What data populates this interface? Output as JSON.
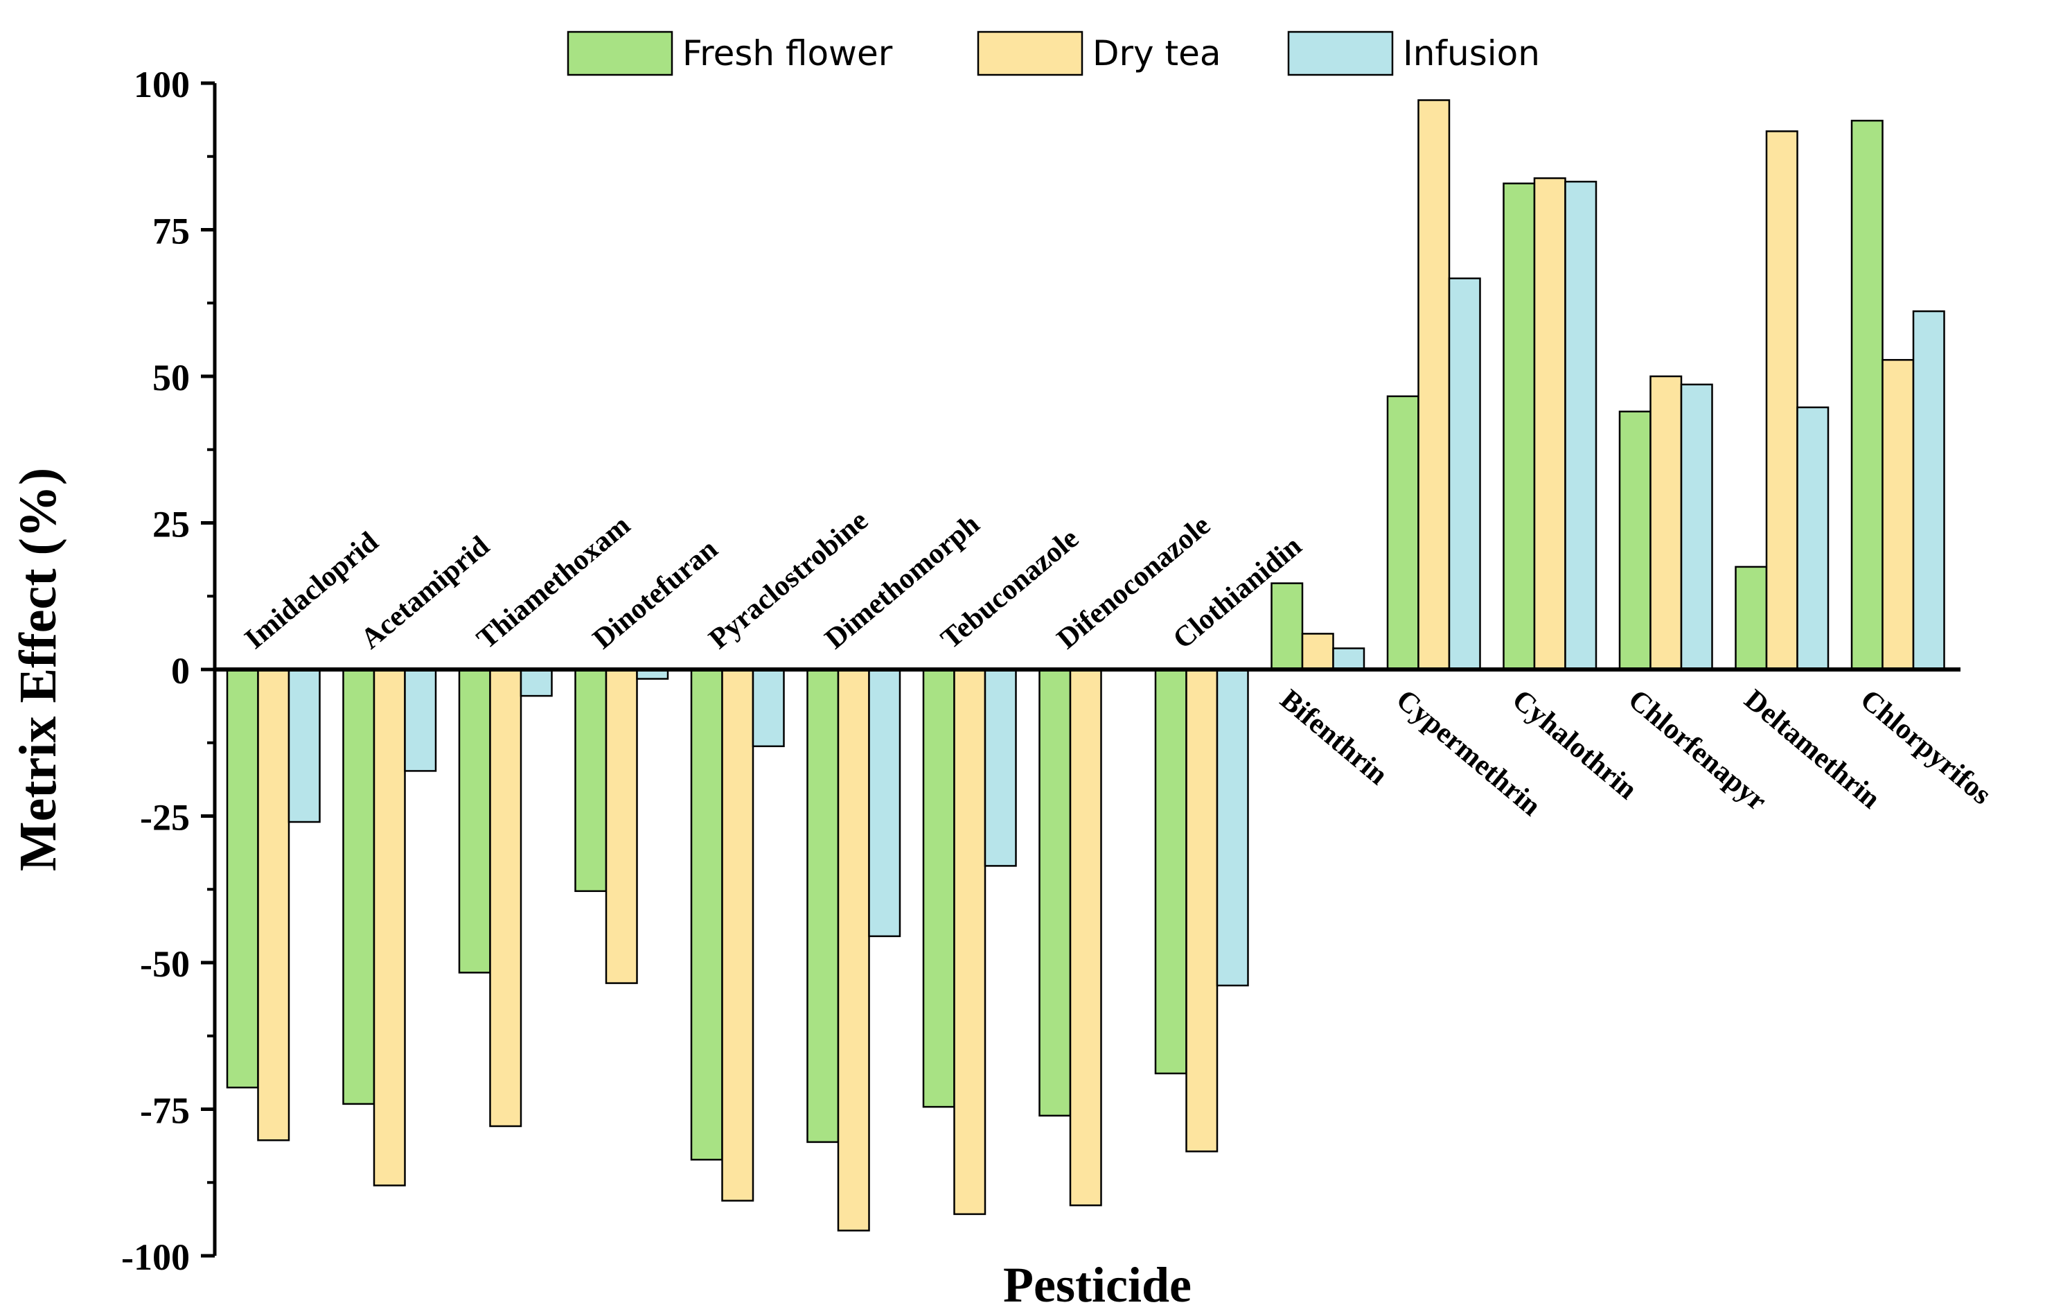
{
  "chart_data": {
    "type": "bar",
    "title": "",
    "xlabel": "Pesticide",
    "ylabel": "Metrix Effect (%)",
    "ylim": [
      -100,
      100
    ],
    "yticks": [
      "-100",
      "-75",
      "-50",
      "-25",
      "0",
      "25",
      "50",
      "75",
      "100"
    ],
    "ytick_values": [
      -100,
      -75,
      -50,
      -25,
      0,
      25,
      50,
      75,
      100
    ],
    "legend_position": "top-center",
    "categories": [
      "Imidacloprid",
      "Acetamiprid",
      "Thiamethoxam",
      "Dinotefuran",
      "Pyraclostrobine",
      "Dimethomorph",
      "Tebuconazole",
      "Difenoconazole",
      "Clothianidin",
      "Bifenthrin",
      "Cypermethrin",
      "Cyhalothrin",
      "Chlorfenapyr",
      "Deltamethrin",
      "Chlorpyrifos"
    ],
    "series": [
      {
        "name": "Fresh flower",
        "color": "#a8e284",
        "values": [
          -71.3,
          -74.1,
          -51.7,
          -37.8,
          -83.6,
          -80.6,
          -74.6,
          -76.1,
          -68.9,
          14.7,
          46.6,
          82.9,
          44.0,
          17.5,
          93.6
        ]
      },
      {
        "name": "Dry tea",
        "color": "#fde49f",
        "values": [
          -80.3,
          -88.0,
          -77.9,
          -53.5,
          -90.6,
          -95.7,
          -92.9,
          -91.4,
          -82.2,
          6.1,
          97.1,
          83.8,
          50.0,
          91.8,
          52.8
        ]
      },
      {
        "name": "Infusion",
        "color": "#b7e4ea",
        "values": [
          -26.0,
          -17.3,
          -4.5,
          -1.6,
          -13.1,
          -45.5,
          -33.5,
          0.2,
          -53.9,
          3.6,
          66.7,
          83.2,
          48.6,
          44.7,
          61.1
        ]
      }
    ]
  }
}
